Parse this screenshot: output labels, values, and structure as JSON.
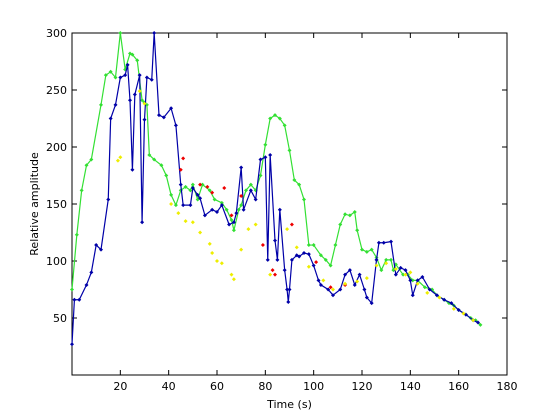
{
  "chart_data": {
    "type": "line",
    "xlabel": "Time (s)",
    "ylabel": "Relative amplitude",
    "xlim": [
      0,
      180
    ],
    "xticks": [
      20,
      40,
      60,
      80,
      100,
      120,
      140,
      160,
      180
    ],
    "ylim": [
      0,
      300
    ],
    "yticks": [
      50,
      100,
      150,
      200,
      250,
      300
    ],
    "series": [
      {
        "color": "#33e033",
        "style": "line",
        "x": [
          0,
          2,
          4,
          6,
          8,
          12,
          14,
          16,
          18,
          20,
          22,
          24,
          25,
          27,
          29,
          30,
          31,
          32,
          34,
          37,
          39,
          41,
          43,
          45,
          47,
          49,
          50,
          52,
          54,
          57,
          59,
          62,
          64,
          66,
          67,
          69,
          70,
          72,
          74,
          76,
          78,
          80,
          82,
          84,
          86,
          88,
          90,
          92,
          94,
          96,
          98,
          100,
          103,
          105,
          107,
          109,
          111,
          113,
          115,
          117,
          118,
          120,
          122,
          124,
          126,
          128,
          130,
          132,
          133,
          134,
          137,
          139,
          141,
          143,
          146,
          149,
          151,
          154,
          156,
          158,
          160,
          163,
          165,
          167,
          169
        ],
        "values": [
          75,
          123,
          162,
          184,
          189,
          237,
          263,
          266,
          261,
          300,
          268,
          282,
          281,
          276,
          241,
          239,
          237,
          193,
          189,
          184,
          175,
          158,
          149,
          162,
          165,
          162,
          167,
          154,
          167,
          162,
          154,
          151,
          145,
          136,
          127,
          145,
          149,
          162,
          167,
          162,
          175,
          202,
          225,
          228,
          225,
          219,
          197,
          171,
          167,
          154,
          114,
          114,
          105,
          101,
          96,
          114,
          132,
          141,
          140,
          143,
          127,
          110,
          108,
          110,
          103,
          92,
          101,
          101,
          92,
          97,
          88,
          88,
          83,
          83,
          77,
          75,
          70,
          66,
          63,
          61,
          57,
          53,
          50,
          48,
          44
        ]
      },
      {
        "color": "#0000a8",
        "style": "line",
        "x": [
          0,
          1,
          3,
          6,
          8,
          10,
          12,
          15,
          16,
          18,
          20,
          22,
          23,
          24,
          25,
          26,
          28,
          29,
          30,
          31,
          33,
          34,
          36,
          38,
          41,
          43,
          45,
          46,
          49,
          50,
          52,
          53,
          55,
          58,
          60,
          62,
          65,
          67,
          68,
          70,
          71,
          74,
          76,
          78,
          80,
          81,
          82,
          84,
          85,
          86,
          88,
          89,
          89.5,
          90,
          91,
          93,
          94,
          96,
          98,
          100,
          102,
          103,
          106,
          108,
          111,
          113,
          115,
          117,
          119,
          121,
          122,
          124,
          126,
          127,
          129,
          132,
          134,
          136,
          138,
          140,
          141,
          143,
          145,
          148,
          151,
          154,
          157,
          160,
          163,
          166,
          168
        ],
        "values": [
          27,
          66,
          66,
          79,
          90,
          114,
          110,
          154,
          225,
          237,
          261,
          263,
          272,
          241,
          180,
          246,
          263,
          134,
          224,
          261,
          259,
          300,
          228,
          226,
          234,
          219,
          167,
          149,
          149,
          164,
          158,
          155,
          140,
          145,
          143,
          149,
          132,
          134,
          142,
          182,
          145,
          162,
          154,
          189,
          191,
          101,
          193,
          118,
          101,
          145,
          92,
          75,
          64,
          75,
          101,
          105,
          104,
          107,
          106,
          96,
          83,
          79,
          75,
          70,
          75,
          88,
          92,
          79,
          88,
          75,
          68,
          63,
          101,
          116,
          116,
          117,
          88,
          94,
          92,
          83,
          70,
          83,
          86,
          75,
          70,
          66,
          63,
          57,
          53,
          48,
          46
        ]
      },
      {
        "color": "#ee0000",
        "style": "markers",
        "x": [
          45,
          46,
          53,
          56,
          58,
          63,
          66,
          70,
          79,
          83,
          84,
          91,
          101,
          107,
          113
        ],
        "values": [
          180,
          190,
          167,
          165,
          160,
          164,
          140,
          157,
          114,
          92,
          88,
          132,
          99,
          77,
          79
        ]
      },
      {
        "color": "#eeee00",
        "style": "markers",
        "x": [
          19,
          20,
          28,
          30,
          41,
          44,
          47,
          50,
          53,
          57,
          58,
          60,
          62,
          66,
          67,
          70,
          73,
          76,
          82,
          89,
          93,
          98,
          104,
          108,
          113,
          118,
          122,
          126,
          130,
          134,
          138,
          140,
          143,
          147,
          152,
          158,
          162,
          166
        ],
        "values": [
          188,
          191,
          249,
          238,
          150,
          142,
          135,
          134,
          125,
          115,
          107,
          100,
          98,
          88,
          84,
          110,
          128,
          132,
          88,
          128,
          112,
          95,
          83,
          75,
          80,
          82,
          85,
          96,
          98,
          93,
          88,
          90,
          80,
          72,
          68,
          58,
          54,
          48
        ]
      }
    ]
  }
}
